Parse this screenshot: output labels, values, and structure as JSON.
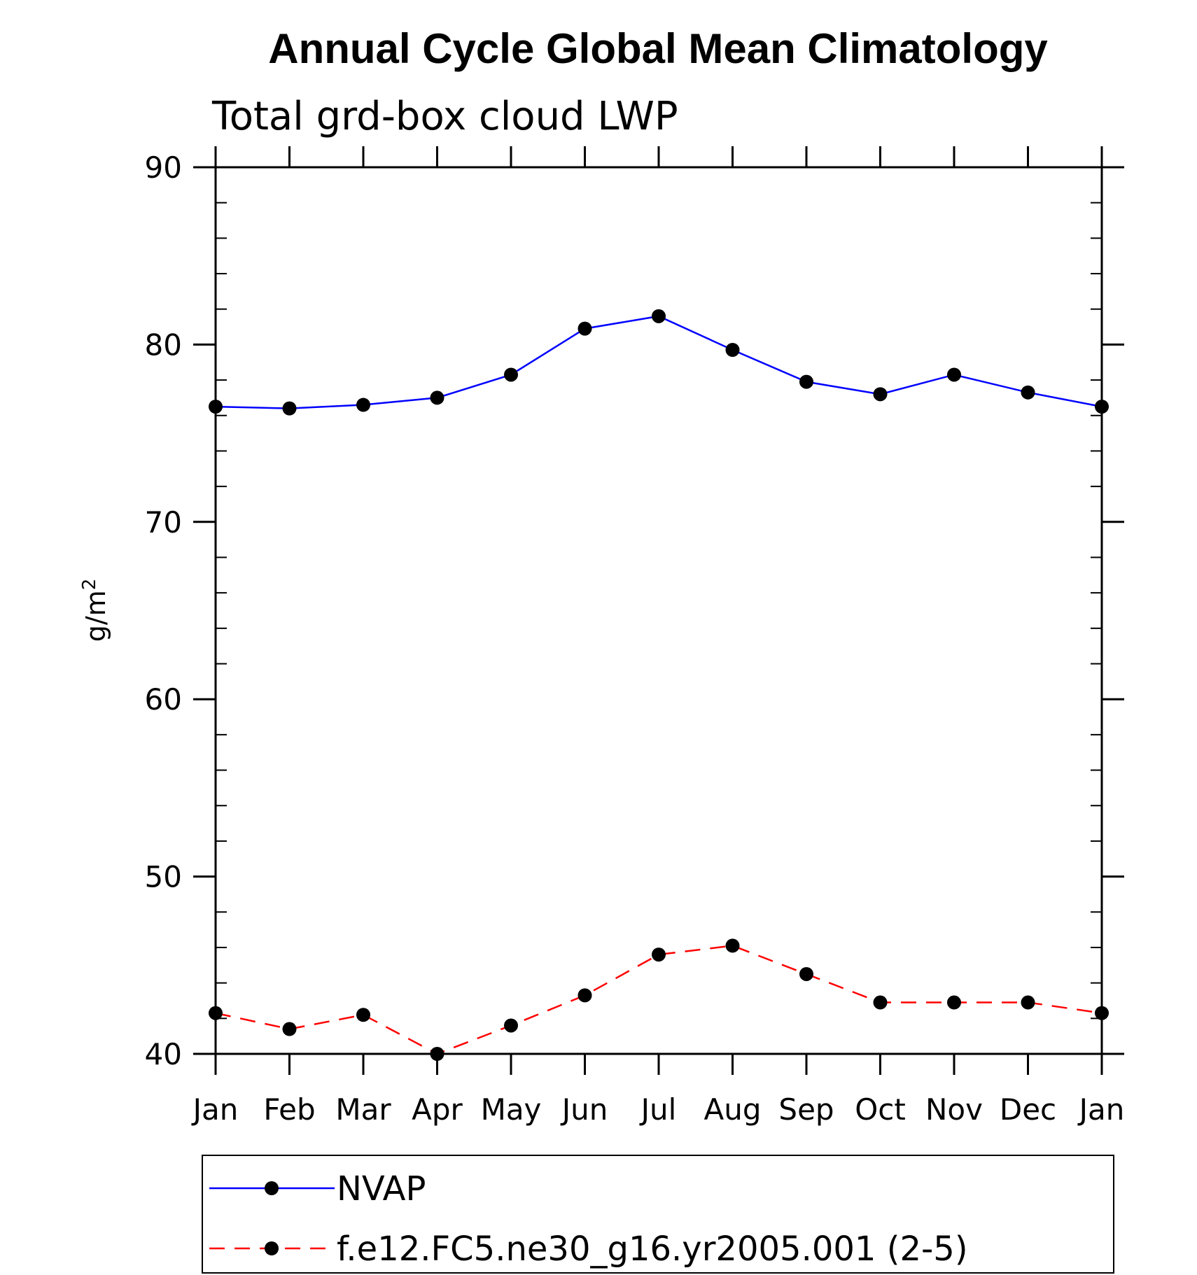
{
  "chart_data": {
    "type": "line",
    "title": "Annual Cycle Global Mean Climatology",
    "subtitle": "Total grd-box cloud LWP",
    "xlabel": "",
    "ylabel": "g/m",
    "ylabel_superscript": "2",
    "categories": [
      "Jan",
      "Feb",
      "Mar",
      "Apr",
      "May",
      "Jun",
      "Jul",
      "Aug",
      "Sep",
      "Oct",
      "Nov",
      "Dec",
      "Jan"
    ],
    "ylim": [
      40,
      90
    ],
    "yticks": [
      "40",
      "50",
      "60",
      "70",
      "80",
      "90"
    ],
    "grid": false,
    "legend_position": "bottom",
    "series": [
      {
        "name": "NVAP",
        "color": "#0000ff",
        "dash": "solid",
        "marker": "filled-circle",
        "values": [
          76.5,
          76.4,
          76.6,
          77.0,
          78.3,
          80.9,
          81.6,
          79.7,
          77.9,
          77.2,
          78.3,
          77.3,
          76.5
        ]
      },
      {
        "name": "f.e12.FC5.ne30_g16.yr2005.001 (2-5)",
        "color": "#ff0000",
        "dash": "dashed",
        "marker": "filled-circle",
        "values": [
          42.3,
          41.4,
          42.2,
          40.0,
          41.6,
          43.3,
          45.6,
          46.1,
          44.5,
          42.9,
          42.9,
          42.9,
          42.3
        ]
      }
    ]
  }
}
